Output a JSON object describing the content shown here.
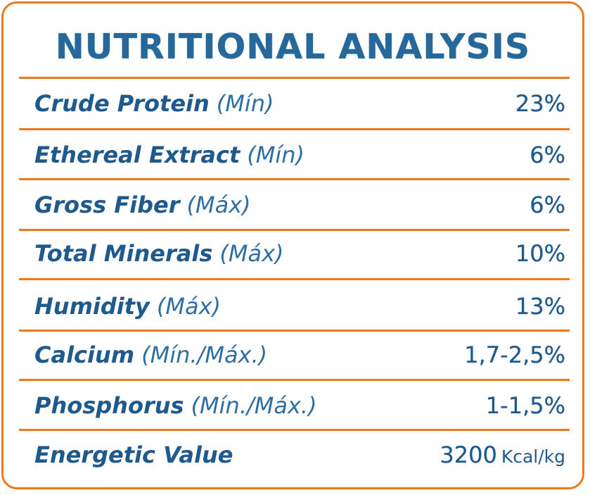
{
  "title": "NUTRITIONAL ANALYSIS",
  "rows": [
    {
      "name": "Crude Protein",
      "qualifier": "(Mín)",
      "value": "23%"
    },
    {
      "name": "Ethereal Extract",
      "qualifier": "(Mín)",
      "value": "6%"
    },
    {
      "name": "Gross Fiber",
      "qualifier": "(Máx)",
      "value": "6%"
    },
    {
      "name": "Total Minerals",
      "qualifier": "(Máx)",
      "value": "10%"
    },
    {
      "name": "Humidity",
      "qualifier": "(Máx)",
      "value": "13%"
    },
    {
      "name": "Calcium",
      "qualifier": "(Mín./Máx.)",
      "value": "1,7-2,5%"
    },
    {
      "name": "Phosphorus",
      "qualifier": "(Mín./Máx.)",
      "value": "1-1,5%"
    },
    {
      "name": "Energetic Value",
      "qualifier": "",
      "value": "3200",
      "unit": "Kcal/kg"
    }
  ],
  "colors": {
    "border": "#ee7a1e",
    "text": "#27689b"
  }
}
